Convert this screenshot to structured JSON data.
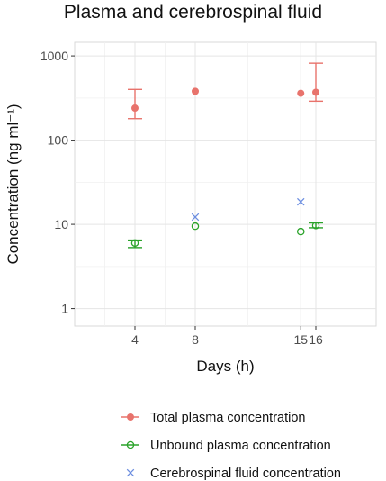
{
  "chart_data": {
    "type": "scatter",
    "title": "Plasma and cerebrospinal fluid",
    "xlabel": "Days (h)",
    "ylabel": "Concentration (ng ml⁻¹)",
    "x_ticks": [
      4,
      8,
      15,
      16
    ],
    "x_range": [
      0,
      20
    ],
    "y_scale": "log",
    "y_ticks": [
      1,
      10,
      100,
      1000
    ],
    "y_tick_labels": [
      "1",
      "10",
      "100",
      "1000"
    ],
    "y_range": [
      0.62,
      1450
    ],
    "grid": true,
    "legend_position": "bottom",
    "series": [
      {
        "name": "Total plasma concentration",
        "color": "#e8736c",
        "marker": "filled-circle",
        "points": [
          {
            "x": 4,
            "y": 240,
            "err_low": 180,
            "err_high": 400
          },
          {
            "x": 8,
            "y": 380
          },
          {
            "x": 15,
            "y": 360
          },
          {
            "x": 16,
            "y": 370,
            "err_low": 290,
            "err_high": 820
          }
        ]
      },
      {
        "name": "Unbound plasma concentration",
        "color": "#2aa32a",
        "marker": "open-circle",
        "points": [
          {
            "x": 4,
            "y": 6.0,
            "err_low": 5.3,
            "err_high": 6.5
          },
          {
            "x": 8,
            "y": 9.5
          },
          {
            "x": 15,
            "y": 8.2
          },
          {
            "x": 16,
            "y": 9.7,
            "err_low": 9.1,
            "err_high": 10.4
          }
        ]
      },
      {
        "name": "Cerebrospinal fluid concentration",
        "color": "#6b8de0",
        "marker": "cross",
        "points": [
          {
            "x": 8,
            "y": 12.2
          },
          {
            "x": 15,
            "y": 18.5
          }
        ]
      }
    ]
  }
}
